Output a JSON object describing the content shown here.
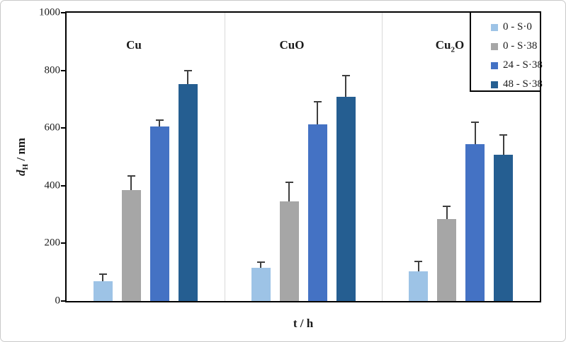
{
  "figure": {
    "background": "#ffffff",
    "outer_border_color": "#c9c9c9",
    "axis_color": "#000000"
  },
  "chart_data": {
    "type": "bar",
    "title": "",
    "xlabel": "t / h",
    "ylabel": "dH / nm",
    "ylabel_parts": {
      "symbol": "d",
      "subscript": "H",
      "unit": " / nm"
    },
    "ylim": [
      0,
      1000
    ],
    "yticks": [
      0,
      200,
      400,
      600,
      800,
      1000
    ],
    "grid": false,
    "legend_position": "top-right",
    "categories": [
      "Cu",
      "CuO",
      "Cu2O"
    ],
    "groups": [
      {
        "label": "Cu"
      },
      {
        "label": "CuO"
      },
      {
        "label_pre": "Cu",
        "label_sub": "2",
        "label_post": "O"
      }
    ],
    "series": [
      {
        "name": "0 - S·0",
        "color": "#9dc3e6",
        "values": [
          68,
          115,
          103
        ],
        "errors": [
          25,
          20,
          35
        ]
      },
      {
        "name": "0 - S·38",
        "color": "#a6a6a6",
        "values": [
          385,
          345,
          285
        ],
        "errors": [
          50,
          68,
          43
        ]
      },
      {
        "name": "24 - S·38",
        "color": "#4472c4",
        "values": [
          605,
          612,
          545
        ],
        "errors": [
          22,
          78,
          74
        ]
      },
      {
        "name": "48 - S·38",
        "color": "#255e91",
        "values": [
          753,
          708,
          508
        ],
        "errors": [
          45,
          74,
          68
        ]
      }
    ],
    "error_bar_color": "#3f3f3f",
    "panel_divider_color": "#d9d9d9"
  }
}
